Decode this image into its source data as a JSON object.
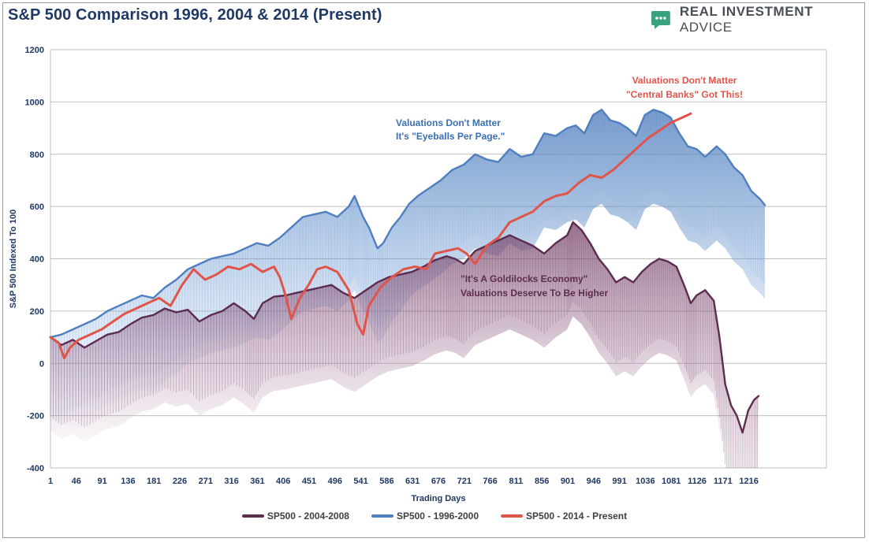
{
  "header": {
    "title": "S&P 500 Comparison 1996, 2004 & 2014 (Present)",
    "logo_bold": "REAL INVESTMENT",
    "logo_light": "ADVICE",
    "logo_icon": "chat-bubble-icon",
    "logo_color": "#3aa17e"
  },
  "chart_data": {
    "type": "line",
    "title": "S&P 500 Comparison 1996, 2004 & 2014 (Present)",
    "xlabel": "Trading Days",
    "ylabel": "S&P 500 Indexed To 100",
    "xlim": [
      1,
      1351
    ],
    "ylim": [
      -400,
      1200
    ],
    "x_ticks": [
      1,
      46,
      91,
      136,
      181,
      226,
      271,
      316,
      361,
      406,
      451,
      496,
      541,
      586,
      631,
      676,
      721,
      766,
      811,
      856,
      901,
      946,
      991,
      1036,
      1081,
      1126,
      1171,
      1216
    ],
    "y_ticks": [
      -400,
      -200,
      0,
      200,
      400,
      600,
      800,
      1000,
      1200
    ],
    "grid": "horizontal",
    "legend_position": "bottom",
    "series": [
      {
        "name": "SP500 - 2004-2008",
        "color": "#5c2d4e",
        "fill_color": "#8a5a7a",
        "points": [
          [
            1,
            100
          ],
          [
            20,
            70
          ],
          [
            40,
            90
          ],
          [
            60,
            60
          ],
          [
            80,
            85
          ],
          [
            100,
            110
          ],
          [
            120,
            120
          ],
          [
            140,
            150
          ],
          [
            160,
            175
          ],
          [
            180,
            185
          ],
          [
            200,
            210
          ],
          [
            220,
            195
          ],
          [
            240,
            205
          ],
          [
            260,
            160
          ],
          [
            280,
            185
          ],
          [
            300,
            200
          ],
          [
            320,
            230
          ],
          [
            340,
            200
          ],
          [
            355,
            170
          ],
          [
            370,
            230
          ],
          [
            390,
            255
          ],
          [
            410,
            260
          ],
          [
            430,
            270
          ],
          [
            450,
            280
          ],
          [
            470,
            290
          ],
          [
            490,
            300
          ],
          [
            510,
            270
          ],
          [
            530,
            250
          ],
          [
            550,
            280
          ],
          [
            570,
            310
          ],
          [
            590,
            330
          ],
          [
            610,
            340
          ],
          [
            630,
            350
          ],
          [
            650,
            370
          ],
          [
            670,
            395
          ],
          [
            690,
            410
          ],
          [
            705,
            400
          ],
          [
            720,
            380
          ],
          [
            740,
            430
          ],
          [
            760,
            450
          ],
          [
            780,
            470
          ],
          [
            800,
            490
          ],
          [
            820,
            470
          ],
          [
            840,
            450
          ],
          [
            860,
            420
          ],
          [
            880,
            460
          ],
          [
            900,
            490
          ],
          [
            910,
            540
          ],
          [
            925,
            510
          ],
          [
            940,
            460
          ],
          [
            955,
            400
          ],
          [
            970,
            360
          ],
          [
            985,
            310
          ],
          [
            1000,
            330
          ],
          [
            1015,
            310
          ],
          [
            1030,
            350
          ],
          [
            1045,
            380
          ],
          [
            1060,
            400
          ],
          [
            1075,
            390
          ],
          [
            1090,
            370
          ],
          [
            1105,
            290
          ],
          [
            1115,
            230
          ],
          [
            1125,
            260
          ],
          [
            1140,
            280
          ],
          [
            1155,
            240
          ],
          [
            1165,
            100
          ],
          [
            1175,
            -80
          ],
          [
            1185,
            -160
          ],
          [
            1195,
            -200
          ],
          [
            1205,
            -265
          ],
          [
            1215,
            -180
          ],
          [
            1225,
            -140
          ],
          [
            1233,
            -125
          ]
        ]
      },
      {
        "name": "SP500 - 1996-2000",
        "color": "#4f7fbf",
        "fill_color": "#8fb4e3",
        "points": [
          [
            1,
            100
          ],
          [
            20,
            110
          ],
          [
            40,
            130
          ],
          [
            60,
            150
          ],
          [
            80,
            170
          ],
          [
            100,
            200
          ],
          [
            120,
            220
          ],
          [
            140,
            240
          ],
          [
            160,
            260
          ],
          [
            180,
            250
          ],
          [
            200,
            290
          ],
          [
            220,
            320
          ],
          [
            240,
            360
          ],
          [
            260,
            380
          ],
          [
            280,
            400
          ],
          [
            300,
            410
          ],
          [
            320,
            420
          ],
          [
            340,
            440
          ],
          [
            360,
            460
          ],
          [
            380,
            450
          ],
          [
            400,
            480
          ],
          [
            420,
            520
          ],
          [
            440,
            560
          ],
          [
            460,
            570
          ],
          [
            480,
            580
          ],
          [
            500,
            560
          ],
          [
            520,
            600
          ],
          [
            530,
            640
          ],
          [
            545,
            560
          ],
          [
            555,
            520
          ],
          [
            570,
            440
          ],
          [
            580,
            460
          ],
          [
            595,
            520
          ],
          [
            610,
            560
          ],
          [
            625,
            610
          ],
          [
            640,
            640
          ],
          [
            660,
            670
          ],
          [
            680,
            700
          ],
          [
            700,
            740
          ],
          [
            720,
            760
          ],
          [
            740,
            800
          ],
          [
            760,
            780
          ],
          [
            780,
            770
          ],
          [
            800,
            820
          ],
          [
            820,
            790
          ],
          [
            840,
            800
          ],
          [
            860,
            880
          ],
          [
            880,
            870
          ],
          [
            900,
            900
          ],
          [
            915,
            910
          ],
          [
            930,
            880
          ],
          [
            945,
            950
          ],
          [
            960,
            970
          ],
          [
            975,
            930
          ],
          [
            990,
            920
          ],
          [
            1005,
            900
          ],
          [
            1020,
            870
          ],
          [
            1035,
            950
          ],
          [
            1050,
            970
          ],
          [
            1065,
            960
          ],
          [
            1080,
            940
          ],
          [
            1095,
            880
          ],
          [
            1110,
            830
          ],
          [
            1125,
            820
          ],
          [
            1140,
            790
          ],
          [
            1160,
            830
          ],
          [
            1175,
            800
          ],
          [
            1190,
            750
          ],
          [
            1205,
            720
          ],
          [
            1220,
            660
          ],
          [
            1235,
            630
          ],
          [
            1244,
            605
          ]
        ]
      },
      {
        "name": "SP500 - 2014 - Present",
        "color": "#e0554b",
        "fill_color": "",
        "points": [
          [
            1,
            100
          ],
          [
            15,
            80
          ],
          [
            25,
            20
          ],
          [
            35,
            60
          ],
          [
            50,
            90
          ],
          [
            70,
            110
          ],
          [
            90,
            130
          ],
          [
            110,
            160
          ],
          [
            130,
            190
          ],
          [
            150,
            210
          ],
          [
            170,
            230
          ],
          [
            190,
            250
          ],
          [
            210,
            220
          ],
          [
            230,
            300
          ],
          [
            250,
            360
          ],
          [
            270,
            320
          ],
          [
            290,
            340
          ],
          [
            310,
            370
          ],
          [
            330,
            360
          ],
          [
            350,
            380
          ],
          [
            370,
            350
          ],
          [
            390,
            370
          ],
          [
            400,
            330
          ],
          [
            410,
            260
          ],
          [
            420,
            170
          ],
          [
            435,
            250
          ],
          [
            450,
            300
          ],
          [
            465,
            360
          ],
          [
            480,
            370
          ],
          [
            500,
            350
          ],
          [
            520,
            280
          ],
          [
            535,
            150
          ],
          [
            545,
            110
          ],
          [
            555,
            220
          ],
          [
            575,
            290
          ],
          [
            595,
            330
          ],
          [
            615,
            360
          ],
          [
            635,
            370
          ],
          [
            655,
            360
          ],
          [
            670,
            420
          ],
          [
            690,
            430
          ],
          [
            710,
            440
          ],
          [
            725,
            420
          ],
          [
            740,
            380
          ],
          [
            760,
            450
          ],
          [
            780,
            480
          ],
          [
            800,
            540
          ],
          [
            820,
            560
          ],
          [
            840,
            580
          ],
          [
            860,
            620
          ],
          [
            880,
            640
          ],
          [
            900,
            650
          ],
          [
            920,
            690
          ],
          [
            940,
            720
          ],
          [
            960,
            710
          ],
          [
            980,
            740
          ],
          [
            1000,
            780
          ],
          [
            1020,
            820
          ],
          [
            1040,
            860
          ],
          [
            1060,
            890
          ],
          [
            1080,
            920
          ],
          [
            1100,
            940
          ],
          [
            1115,
            955
          ]
        ]
      }
    ],
    "annotations": [
      {
        "text": "Valuations Don't Matter",
        "color": "#3b6fb6"
      },
      {
        "text": "It's \"Eyeballs Per Page.\"",
        "color": "#3b6fb6"
      },
      {
        "text": "Valuations Don't Matter",
        "color": "#e0554b"
      },
      {
        "text": "\"Central Banks\" Got This!",
        "color": "#e0554b"
      },
      {
        "text": "\"It's A Goldilocks Economy\"",
        "color": "#5c2d4e"
      },
      {
        "text": "Valuations Deserve To Be Higher",
        "color": "#5c2d4e"
      }
    ]
  }
}
